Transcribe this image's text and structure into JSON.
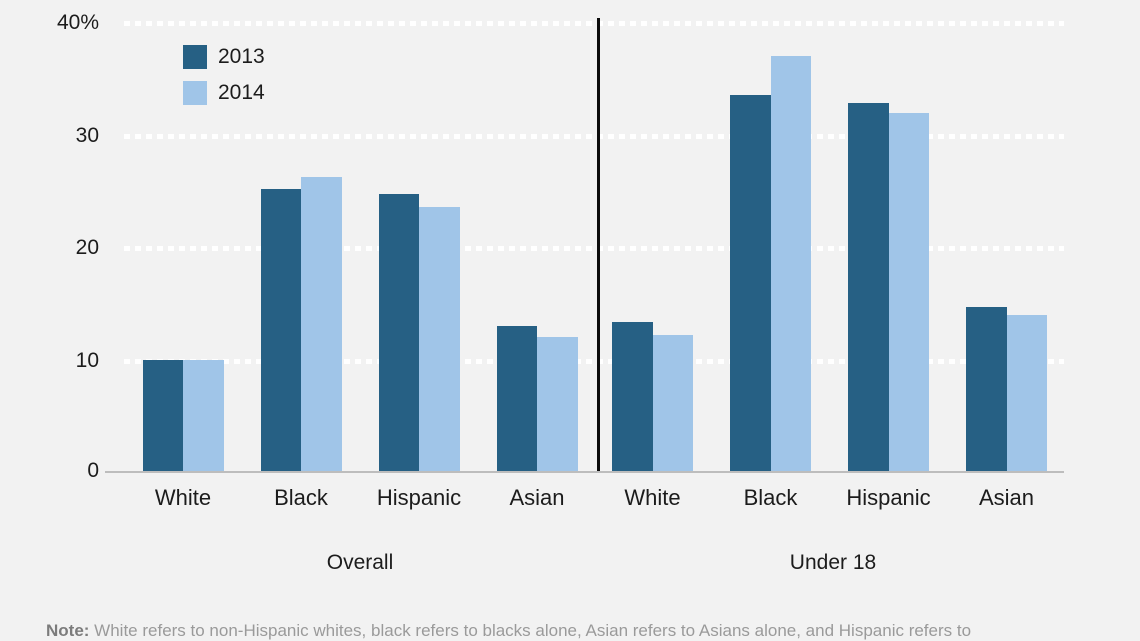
{
  "colors": {
    "background": "#f2f2f2",
    "bar_2013": "#266084",
    "bar_2014": "#a0c5e8",
    "gridline": "#ffffff",
    "axis_line": "#bdbdbd",
    "divider": "#0c0c0c",
    "label_text": "#1c1c1c",
    "note_text": "#9a9a9a"
  },
  "chart_data": {
    "type": "bar",
    "unit": "percent",
    "y_axis": {
      "ticks": [
        "40%",
        "30",
        "20",
        "10",
        "0"
      ],
      "tick_values": [
        40,
        30,
        20,
        10,
        0
      ],
      "ylim": [
        0,
        40
      ],
      "gridlines": "dotted-white"
    },
    "legend": {
      "position": "top-left",
      "entries": [
        {
          "label": "2013",
          "color": "#266084"
        },
        {
          "label": "2014",
          "color": "#a0c5e8"
        }
      ]
    },
    "panels": [
      {
        "label": "Overall",
        "categories": [
          "White",
          "Black",
          "Hispanic",
          "Asian"
        ],
        "series": [
          {
            "name": "2013",
            "values": [
              10.0,
              25.2,
              24.7,
              13.0
            ]
          },
          {
            "name": "2014",
            "values": [
              10.0,
              26.2,
              23.6,
              12.0
            ]
          }
        ]
      },
      {
        "label": "Under 18",
        "categories": [
          "White",
          "Black",
          "Hispanic",
          "Asian"
        ],
        "series": [
          {
            "name": "2013",
            "values": [
              13.3,
              33.5,
              32.8,
              14.7
            ]
          },
          {
            "name": "2014",
            "values": [
              12.2,
              37.0,
              31.9,
              14.0
            ]
          }
        ]
      }
    ]
  },
  "note": {
    "label": "Note:",
    "text": " White refers to non-Hispanic whites, black refers to blacks alone, Asian refers to Asians alone, and Hispanic refers to"
  }
}
